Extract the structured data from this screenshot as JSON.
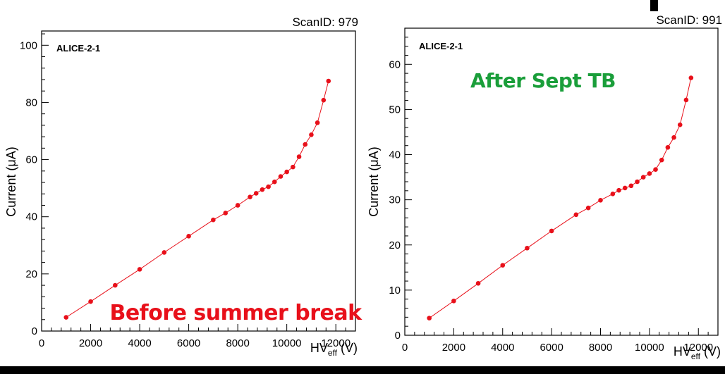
{
  "chart_data": [
    {
      "type": "line",
      "scan_id": "ScanID: 979",
      "chamber_label": "ALICE-2-1",
      "annotation": "Before summer break",
      "annotation_color": "#e8101a",
      "ylabel": "Current (μA)",
      "xlabel_main": "HV",
      "xlabel_sub": "eff",
      "xlabel_unit": " (V)",
      "xlim": [
        0,
        12800
      ],
      "ylim": [
        0,
        105
      ],
      "x_ticks": [
        "0",
        "2000",
        "4000",
        "6000",
        "8000",
        "10000",
        "12000"
      ],
      "y_ticks": [
        "0",
        "20",
        "40",
        "60",
        "80",
        "100"
      ],
      "series_color": "#e8101a",
      "x": [
        1000,
        2000,
        3000,
        4000,
        5000,
        6000,
        7000,
        7500,
        8000,
        8500,
        8750,
        9000,
        9250,
        9500,
        9750,
        10000,
        10250,
        10500,
        10750,
        11000,
        11250,
        11500,
        11700
      ],
      "y": [
        4.8,
        10.3,
        16.0,
        21.6,
        27.5,
        33.2,
        38.9,
        41.3,
        44.0,
        46.9,
        48.2,
        49.5,
        50.5,
        52.2,
        54.1,
        55.7,
        57.4,
        61.0,
        65.3,
        68.7,
        72.9,
        80.8,
        87.5
      ]
    },
    {
      "type": "line",
      "scan_id": "ScanID: 991",
      "chamber_label": "ALICE-2-1",
      "annotation": "After Sept TB",
      "annotation_color": "#1a9e3a",
      "ylabel": "Current (μA)",
      "xlabel_main": "HV",
      "xlabel_sub": "eff",
      "xlabel_unit": " (V)",
      "xlim": [
        0,
        12800
      ],
      "ylim": [
        0,
        68
      ],
      "x_ticks": [
        "0",
        "2000",
        "4000",
        "6000",
        "8000",
        "10000",
        "12000"
      ],
      "y_ticks": [
        "0",
        "10",
        "20",
        "30",
        "40",
        "50",
        "60"
      ],
      "series_color": "#e8101a",
      "x": [
        1000,
        2000,
        3000,
        4000,
        5000,
        6000,
        7000,
        7500,
        8000,
        8500,
        8750,
        9000,
        9250,
        9500,
        9750,
        10000,
        10250,
        10500,
        10750,
        11000,
        11250,
        11500,
        11700
      ],
      "y": [
        3.8,
        7.6,
        11.5,
        15.5,
        19.3,
        23.1,
        26.7,
        28.2,
        29.9,
        31.3,
        32.1,
        32.6,
        33.1,
        34.0,
        35.0,
        35.8,
        36.7,
        38.8,
        41.6,
        43.8,
        46.6,
        52.1,
        57.0
      ]
    }
  ]
}
